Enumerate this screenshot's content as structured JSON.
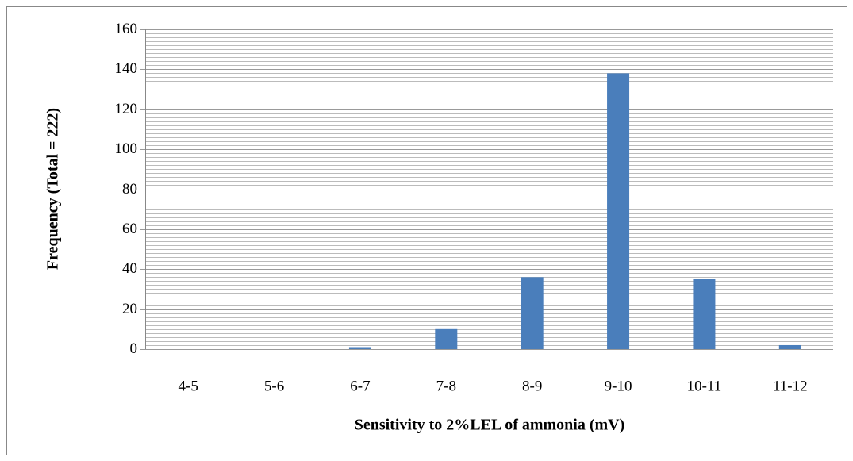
{
  "chart_data": {
    "type": "bar",
    "x_label": "Sensitivity to 2%LEL of ammonia (mV)",
    "y_label": "Frequency (Total = 222)",
    "categories": [
      "4-5",
      "5-6",
      "6-7",
      "7-8",
      "8-9",
      "9-10",
      "10-11",
      "11-12"
    ],
    "values": [
      0,
      0,
      1,
      10,
      36,
      138,
      35,
      2
    ],
    "color": "#4a7ebb",
    "ylim": [
      0,
      160
    ],
    "yticks": [
      0,
      20,
      40,
      60,
      80,
      100,
      120,
      140,
      160
    ],
    "grid": true,
    "minor_grid_step": 2
  }
}
